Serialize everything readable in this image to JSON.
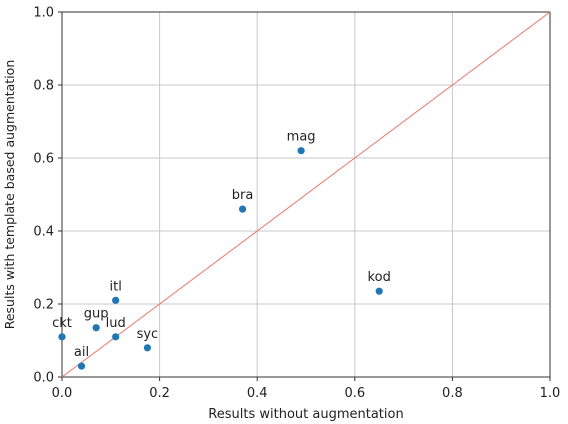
{
  "chart_data": {
    "type": "scatter",
    "title": "",
    "xlabel": "Results without augmentation",
    "ylabel": "Results with template based augmentation",
    "xlim": [
      0,
      1
    ],
    "ylim": [
      0,
      1
    ],
    "grid": true,
    "xticks": [
      "0.0",
      "0.2",
      "0.4",
      "0.6",
      "0.8",
      "1.0"
    ],
    "yticks": [
      "0.0",
      "0.2",
      "0.4",
      "0.6",
      "0.8",
      "1.0"
    ],
    "diagonal_line": {
      "from": [
        0,
        0
      ],
      "to": [
        1,
        1
      ],
      "color": "#e8786e"
    },
    "point_color": "#1f77b4",
    "points": [
      {
        "label": "ckt",
        "x": 0.0,
        "y": 0.11
      },
      {
        "label": "ail",
        "x": 0.04,
        "y": 0.03
      },
      {
        "label": "gup",
        "x": 0.07,
        "y": 0.135
      },
      {
        "label": "lud",
        "x": 0.11,
        "y": 0.11
      },
      {
        "label": "itl",
        "x": 0.11,
        "y": 0.21
      },
      {
        "label": "syc",
        "x": 0.175,
        "y": 0.08
      },
      {
        "label": "bra",
        "x": 0.37,
        "y": 0.46
      },
      {
        "label": "mag",
        "x": 0.49,
        "y": 0.62
      },
      {
        "label": "kod",
        "x": 0.65,
        "y": 0.235
      }
    ]
  }
}
